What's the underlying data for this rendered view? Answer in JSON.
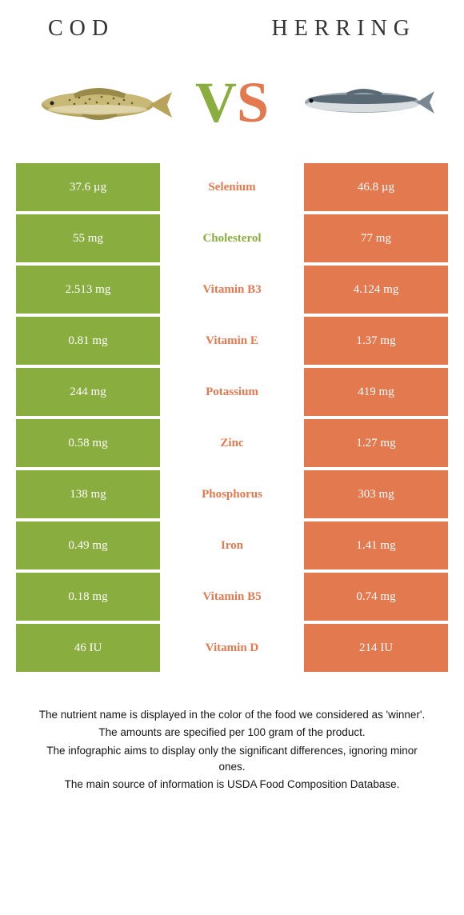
{
  "header": {
    "left_title": "COD",
    "right_title": "HERRING"
  },
  "vs": {
    "v": "V",
    "s": "S"
  },
  "colors": {
    "left_bg": "#8aad3f",
    "right_bg": "#e2794f",
    "left_text": "#8aad3f",
    "right_text": "#e2794f",
    "cell_text": "#ffffff"
  },
  "rows": [
    {
      "left": "37.6 µg",
      "label": "Selenium",
      "right": "46.8 µg",
      "winner": "right"
    },
    {
      "left": "55 mg",
      "label": "Cholesterol",
      "right": "77 mg",
      "winner": "left"
    },
    {
      "left": "2.513 mg",
      "label": "Vitamin B3",
      "right": "4.124 mg",
      "winner": "right"
    },
    {
      "left": "0.81 mg",
      "label": "Vitamin E",
      "right": "1.37 mg",
      "winner": "right"
    },
    {
      "left": "244 mg",
      "label": "Potassium",
      "right": "419 mg",
      "winner": "right"
    },
    {
      "left": "0.58 mg",
      "label": "Zinc",
      "right": "1.27 mg",
      "winner": "right"
    },
    {
      "left": "138 mg",
      "label": "Phosphorus",
      "right": "303 mg",
      "winner": "right"
    },
    {
      "left": "0.49 mg",
      "label": "Iron",
      "right": "1.41 mg",
      "winner": "right"
    },
    {
      "left": "0.18 mg",
      "label": "Vitamin B5",
      "right": "0.74 mg",
      "winner": "right"
    },
    {
      "left": "46 IU",
      "label": "Vitamin D",
      "right": "214 IU",
      "winner": "right"
    }
  ],
  "footer": {
    "line1": "The nutrient name is displayed in the color of the food we considered as 'winner'.",
    "line2": "The amounts are specified per 100 gram of the product.",
    "line3": "The infographic aims to display only the significant differences, ignoring minor ones.",
    "line4": "The main source of information is USDA Food Composition Database."
  }
}
